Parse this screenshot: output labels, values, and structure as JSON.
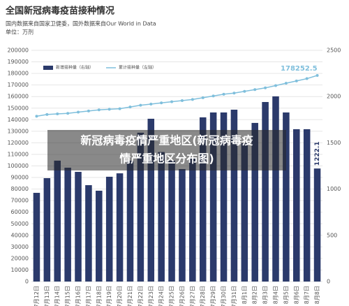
{
  "chart_data": {
    "type": "bar-line",
    "title": "全国新冠病毒疫苗接种情况",
    "subtitle": "国内数据来自国家卫健委，国外数据来自Our World in Data",
    "unit": "单位：万剂",
    "overlay": [
      "新冠病毒疫情严重地区(新冠病毒疫",
      "情严重地区分布图)"
    ],
    "categories": [
      "7月12日",
      "7月13日",
      "7月14日",
      "7月15日",
      "7月16日",
      "7月17日",
      "7月18日",
      "7月19日",
      "7月20日",
      "7月21日",
      "7月22日",
      "7月23日",
      "7月24日",
      "7月25日",
      "7月26日",
      "7月27日",
      "7月28日",
      "7月29日",
      "7月30日",
      "7月31日",
      "8月1日",
      "8月2日",
      "8月3日",
      "8月4日",
      "8月5日",
      "8月6日",
      "8月7日",
      "8月8日"
    ],
    "series": [
      {
        "name": "新增接种量（右轴）",
        "color": "#2b3a6b",
        "axis": "y2",
        "values": [
          959,
          1118,
          1307,
          1231,
          1186,
          1042,
          982,
          1133,
          1170,
          1307,
          1609,
          1760,
          1400,
          1307,
          1216,
          1344,
          1775,
          1828,
          1828,
          1858,
          1495,
          1715,
          1941,
          2002,
          1828,
          1647,
          1647,
          1222.1
        ],
        "value_labels": [
          null,
          null,
          null,
          null,
          null,
          null,
          null,
          null,
          null,
          null,
          null,
          null,
          null,
          null,
          null,
          null,
          null,
          null,
          null,
          null,
          null,
          null,
          null,
          null,
          null,
          null,
          null,
          "1222.1"
        ]
      },
      {
        "name": "累计接种量（左轴）",
        "color": "#7fbfdc",
        "values": [
          143000,
          144500,
          145000,
          145500,
          146500,
          147500,
          148500,
          149000,
          149500,
          151000,
          152500,
          153500,
          154500,
          155500,
          156500,
          157500,
          159000,
          160500,
          162000,
          163000,
          164500,
          166000,
          167500,
          169500,
          171500,
          173500,
          175500,
          178252.5
        ],
        "value_labels": [
          null,
          null,
          null,
          null,
          null,
          null,
          null,
          null,
          null,
          null,
          null,
          null,
          null,
          null,
          null,
          null,
          null,
          null,
          null,
          null,
          null,
          null,
          null,
          null,
          null,
          null,
          null,
          "178252.5"
        ]
      }
    ],
    "ylim": [
      0,
      200000
    ],
    "yticks": [
      0,
      10000,
      20000,
      30000,
      40000,
      50000,
      60000,
      70000,
      80000,
      90000,
      100000,
      110000,
      120000,
      130000,
      140000,
      150000,
      160000,
      170000,
      180000,
      190000,
      200000
    ],
    "y2lim": [
      0,
      2500
    ],
    "y2ticks": [
      0,
      500,
      1000,
      1500,
      2000,
      2500
    ],
    "grid": true
  }
}
